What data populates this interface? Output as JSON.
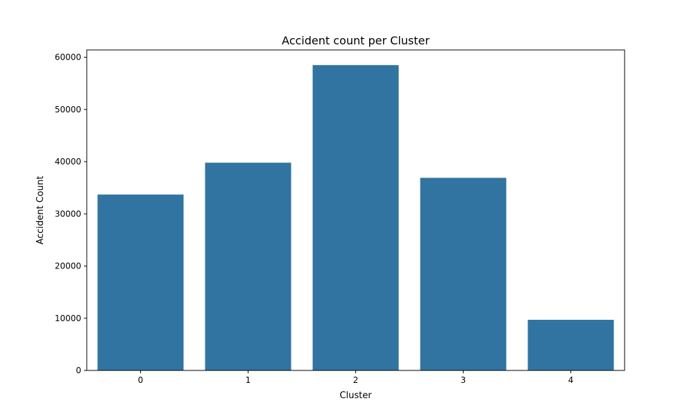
{
  "chart_data": {
    "type": "bar",
    "title": "Accident count per Cluster",
    "xlabel": "Cluster",
    "ylabel": "Accident Count",
    "categories": [
      "0",
      "1",
      "2",
      "3",
      "4"
    ],
    "values": [
      33700,
      39800,
      58500,
      36900,
      9700
    ],
    "ylim": [
      0,
      61400
    ],
    "yticks": [
      0,
      10000,
      20000,
      30000,
      40000,
      50000,
      60000
    ],
    "ytick_labels": [
      "0",
      "10000",
      "20000",
      "30000",
      "40000",
      "50000",
      "60000"
    ],
    "grid": false,
    "legend": "none",
    "colors": {
      "bar": "#3274a1",
      "axis": "#000000",
      "background": "#ffffff"
    }
  }
}
